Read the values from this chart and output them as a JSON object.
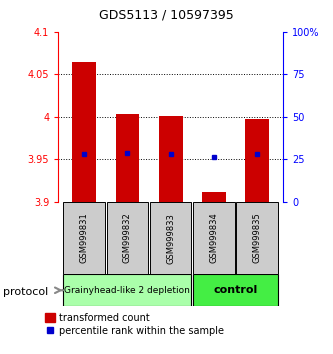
{
  "title": "GDS5113 / 10597395",
  "samples": [
    "GSM999831",
    "GSM999832",
    "GSM999833",
    "GSM999834",
    "GSM999835"
  ],
  "bar_bottom": 3.9,
  "bar_tops": [
    4.065,
    4.003,
    4.001,
    3.912,
    3.997
  ],
  "percentile_values": [
    3.956,
    3.957,
    3.956,
    3.953,
    3.956
  ],
  "ylim_left": [
    3.9,
    4.1
  ],
  "ylim_right": [
    0,
    100
  ],
  "yticks_left": [
    3.9,
    3.95,
    4.0,
    4.05,
    4.1
  ],
  "ytick_labels_left": [
    "3.9",
    "3.95",
    "4",
    "4.05",
    "4.1"
  ],
  "yticks_right": [
    0,
    25,
    50,
    75,
    100
  ],
  "ytick_labels_right": [
    "0",
    "25",
    "50",
    "75",
    "100%"
  ],
  "hlines": [
    3.95,
    4.0,
    4.05
  ],
  "bar_color": "#cc0000",
  "percentile_color": "#0000cc",
  "group1_label": "Grainyhead-like 2 depletion",
  "group2_label": "control",
  "group1_color": "#aaffaa",
  "group2_color": "#44ee44",
  "label_area_color": "#cccccc",
  "protocol_label": "protocol",
  "legend_red_label": "transformed count",
  "legend_blue_label": "percentile rank within the sample",
  "bar_width": 0.55,
  "title_fontsize": 9,
  "tick_fontsize": 7,
  "sample_fontsize": 6,
  "group_fontsize": 6.5,
  "legend_fontsize": 7
}
